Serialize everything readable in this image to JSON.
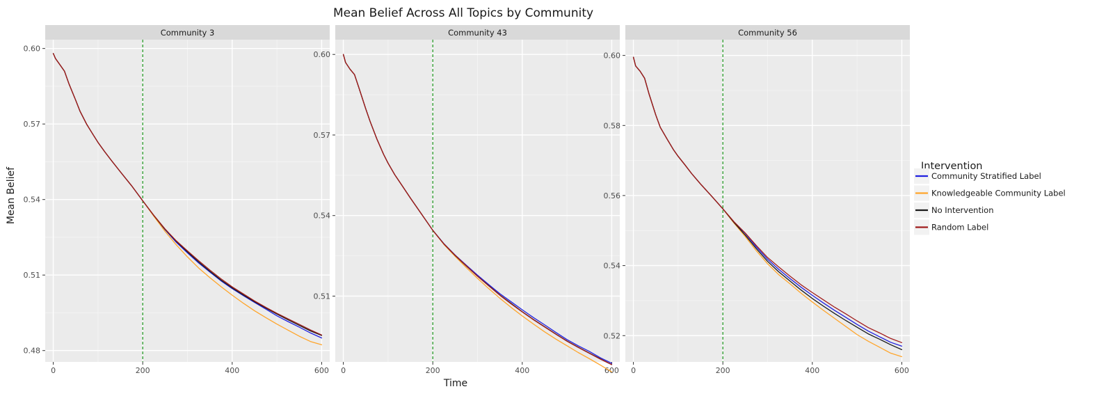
{
  "chart_data": {
    "type": "line",
    "title": "Mean Belief Across All Topics by Community",
    "xlabel": "Time",
    "ylabel": "Mean Belief",
    "legend": {
      "title": "Intervention",
      "placement": "right"
    },
    "colors": {
      "Community Stratified Label": "#1f1fe0",
      "Knowledgeable Community Label": "#ffa52b",
      "No Intervention": "#1a1a1a",
      "Random Label": "#a01c1c",
      "vline": "#008a00",
      "panel_bg": "#ebebeb",
      "strip_bg": "#d9d9d9"
    },
    "vline_x": 200,
    "panels": [
      {
        "label": "Community 3",
        "xlim": [
          -18,
          618
        ],
        "ylim": [
          0.4755,
          0.6035
        ],
        "x_ticks": [
          0,
          200,
          400,
          600
        ],
        "y_ticks": [
          0.48,
          0.51,
          0.54,
          0.57,
          0.6
        ],
        "y_tick_labels": [
          "0.48",
          "0.51",
          "0.54",
          "0.57",
          "0.60"
        ],
        "x": [
          0,
          5,
          15,
          25,
          35,
          50,
          60,
          75,
          90,
          100,
          115,
          130,
          150,
          175,
          200,
          225,
          250,
          275,
          300,
          325,
          350,
          375,
          400,
          425,
          450,
          475,
          500,
          525,
          550,
          575,
          600
        ],
        "series": [
          {
            "name": "Community Stratified Label",
            "values": [
              0.598,
              0.596,
              0.5935,
              0.591,
              0.586,
              0.5795,
              0.575,
              0.5698,
              0.5655,
              0.5627,
              0.559,
              0.5555,
              0.551,
              0.5455,
              0.5395,
              0.5335,
              0.528,
              0.523,
              0.5188,
              0.5148,
              0.5112,
              0.5077,
              0.5046,
              0.5018,
              0.4991,
              0.4965,
              0.4938,
              0.4915,
              0.4893,
              0.487,
              0.485
            ]
          },
          {
            "name": "Knowledgeable Community Label",
            "values": [
              0.598,
              0.596,
              0.5935,
              0.591,
              0.586,
              0.5795,
              0.575,
              0.5698,
              0.5655,
              0.5627,
              0.559,
              0.5555,
              0.551,
              0.5455,
              0.5395,
              0.5333,
              0.5273,
              0.522,
              0.5172,
              0.5128,
              0.509,
              0.5054,
              0.502,
              0.4988,
              0.4958,
              0.4931,
              0.4905,
              0.4881,
              0.4857,
              0.4836,
              0.4823
            ]
          },
          {
            "name": "No Intervention",
            "values": [
              0.598,
              0.596,
              0.5935,
              0.591,
              0.586,
              0.5795,
              0.575,
              0.5698,
              0.5655,
              0.5627,
              0.559,
              0.5555,
              0.551,
              0.5455,
              0.5395,
              0.5336,
              0.5281,
              0.5234,
              0.5192,
              0.5152,
              0.5115,
              0.508,
              0.5049,
              0.5021,
              0.4994,
              0.4969,
              0.4945,
              0.4922,
              0.49,
              0.4878,
              0.486
            ]
          },
          {
            "name": "Random Label",
            "values": [
              0.598,
              0.596,
              0.5935,
              0.591,
              0.586,
              0.5795,
              0.575,
              0.5698,
              0.5655,
              0.5627,
              0.559,
              0.5555,
              0.551,
              0.5455,
              0.5395,
              0.5337,
              0.5283,
              0.5236,
              0.5196,
              0.5157,
              0.512,
              0.5085,
              0.5053,
              0.5025,
              0.4997,
              0.4972,
              0.4948,
              0.4926,
              0.4904,
              0.4882,
              0.4862
            ]
          }
        ]
      },
      {
        "label": "Community 43",
        "xlim": [
          -18,
          618
        ],
        "ylim": [
          0.4855,
          0.6055
        ],
        "x_ticks": [
          0,
          200,
          400,
          600
        ],
        "y_ticks": [
          0.51,
          0.54,
          0.57,
          0.6
        ],
        "y_tick_labels": [
          "0.51",
          "0.54",
          "0.57",
          "0.60"
        ],
        "x": [
          0,
          5,
          15,
          25,
          35,
          50,
          60,
          75,
          90,
          100,
          115,
          130,
          150,
          175,
          200,
          225,
          250,
          275,
          300,
          325,
          350,
          375,
          400,
          425,
          450,
          475,
          500,
          525,
          550,
          575,
          600
        ],
        "series": [
          {
            "name": "Community Stratified Label",
            "values": [
              0.6,
              0.597,
              0.5945,
              0.5925,
              0.5875,
              0.5798,
              0.575,
              0.5685,
              0.5628,
              0.5595,
              0.5552,
              0.5515,
              0.5465,
              0.5405,
              0.5345,
              0.5295,
              0.5253,
              0.5215,
              0.5178,
              0.5143,
              0.5109,
              0.5079,
              0.5049,
              0.502,
              0.4993,
              0.4965,
              0.4938,
              0.4915,
              0.4894,
              0.487,
              0.485
            ]
          },
          {
            "name": "Knowledgeable Community Label",
            "values": [
              0.6,
              0.597,
              0.5945,
              0.5925,
              0.5875,
              0.5798,
              0.575,
              0.5685,
              0.5628,
              0.5595,
              0.5552,
              0.5515,
              0.5465,
              0.5405,
              0.5345,
              0.5292,
              0.5248,
              0.5206,
              0.5166,
              0.5128,
              0.5092,
              0.5058,
              0.5026,
              0.4996,
              0.4967,
              0.494,
              0.4915,
              0.489,
              0.4867,
              0.4843,
              0.4818
            ]
          },
          {
            "name": "No Intervention",
            "values": [
              0.6,
              0.597,
              0.5945,
              0.5925,
              0.5875,
              0.5798,
              0.575,
              0.5685,
              0.5628,
              0.5595,
              0.5552,
              0.5515,
              0.5465,
              0.5405,
              0.5345,
              0.5294,
              0.5251,
              0.5212,
              0.5174,
              0.5139,
              0.5104,
              0.5073,
              0.5042,
              0.5013,
              0.4986,
              0.4959,
              0.4933,
              0.491,
              0.4888,
              0.4866,
              0.4845
            ]
          },
          {
            "name": "Random Label",
            "values": [
              0.6,
              0.597,
              0.5945,
              0.5925,
              0.5875,
              0.5798,
              0.575,
              0.5685,
              0.5628,
              0.5595,
              0.5552,
              0.5515,
              0.5465,
              0.5405,
              0.5345,
              0.5294,
              0.5252,
              0.5213,
              0.5174,
              0.5138,
              0.5103,
              0.5071,
              0.5041,
              0.5012,
              0.4985,
              0.4958,
              0.4932,
              0.4909,
              0.4887,
              0.4865,
              0.4845
            ]
          }
        ]
      },
      {
        "label": "Community 56",
        "xlim": [
          -18,
          618
        ],
        "ylim": [
          0.5125,
          0.6045
        ],
        "x_ticks": [
          0,
          200,
          400,
          600
        ],
        "y_ticks": [
          0.52,
          0.54,
          0.56,
          0.58,
          0.6
        ],
        "y_tick_labels": [
          "0.52",
          "0.54",
          "0.56",
          "0.58",
          "0.60"
        ],
        "x": [
          0,
          5,
          15,
          25,
          35,
          50,
          60,
          75,
          90,
          100,
          115,
          130,
          150,
          175,
          200,
          225,
          250,
          275,
          300,
          325,
          350,
          375,
          400,
          425,
          450,
          475,
          500,
          525,
          550,
          575,
          600
        ],
        "series": [
          {
            "name": "Community Stratified Label",
            "values": [
              0.5995,
              0.597,
              0.5955,
              0.5935,
              0.589,
              0.583,
              0.5795,
              0.5762,
              0.573,
              0.5712,
              0.5688,
              0.5663,
              0.5633,
              0.5598,
              0.5562,
              0.5524,
              0.5492,
              0.5453,
              0.5418,
              0.5389,
              0.5363,
              0.5338,
              0.5315,
              0.5293,
              0.5272,
              0.5252,
              0.5232,
              0.5213,
              0.5197,
              0.5181,
              0.517
            ]
          },
          {
            "name": "Knowledgeable Community Label",
            "values": [
              0.5995,
              0.597,
              0.5955,
              0.5935,
              0.589,
              0.583,
              0.5795,
              0.5762,
              0.573,
              0.5712,
              0.5688,
              0.5663,
              0.5633,
              0.5598,
              0.5562,
              0.5521,
              0.5483,
              0.5442,
              0.5405,
              0.5374,
              0.5348,
              0.5321,
              0.5296,
              0.5272,
              0.5249,
              0.5226,
              0.5203,
              0.5184,
              0.5167,
              0.515,
              0.514
            ]
          },
          {
            "name": "No Intervention",
            "values": [
              0.5995,
              0.597,
              0.5955,
              0.5935,
              0.589,
              0.583,
              0.5795,
              0.5762,
              0.573,
              0.5712,
              0.5688,
              0.5663,
              0.5633,
              0.5598,
              0.5562,
              0.5523,
              0.5487,
              0.5448,
              0.5412,
              0.5382,
              0.5356,
              0.533,
              0.5306,
              0.5284,
              0.5263,
              0.5243,
              0.5224,
              0.5205,
              0.519,
              0.5174,
              0.516
            ]
          },
          {
            "name": "Random Label",
            "values": [
              0.5995,
              0.597,
              0.5955,
              0.5935,
              0.589,
              0.583,
              0.5795,
              0.5762,
              0.573,
              0.5712,
              0.5688,
              0.5663,
              0.5633,
              0.5598,
              0.5562,
              0.5525,
              0.5493,
              0.5457,
              0.5423,
              0.5396,
              0.537,
              0.5345,
              0.5323,
              0.5302,
              0.5281,
              0.5262,
              0.5242,
              0.5223,
              0.5208,
              0.5192,
              0.518
            ]
          }
        ]
      }
    ]
  }
}
